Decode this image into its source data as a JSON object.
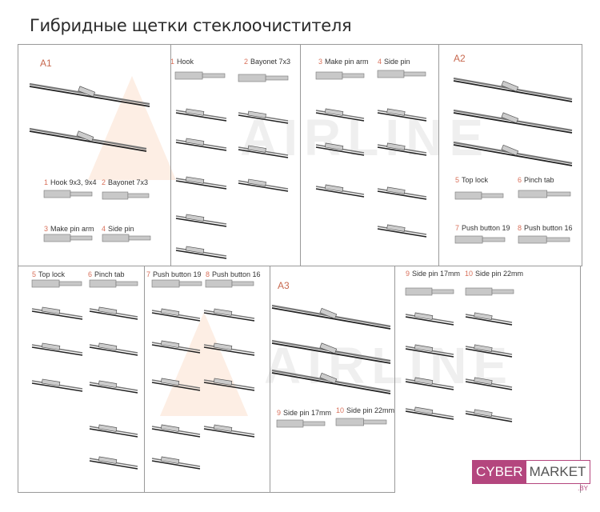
{
  "title": "Гибридные щетки стеклоочистителя",
  "watermark": "AIRLINE",
  "accent_color": "#d9705a",
  "top": {
    "a1": {
      "section": "A1",
      "labels": [
        {
          "n": "1",
          "text": "Hook 9x3, 9x4"
        },
        {
          "n": "2",
          "text": "Bayonet 7x3"
        },
        {
          "n": "3",
          "text": "Make pin arm"
        },
        {
          "n": "4",
          "text": "Side pin"
        }
      ]
    },
    "p2": {
      "labels": [
        {
          "n": "1",
          "text": "Hook"
        },
        {
          "n": "2",
          "text": "Bayonet 7x3"
        }
      ]
    },
    "p3": {
      "labels": [
        {
          "n": "3",
          "text": "Make pin arm"
        },
        {
          "n": "4",
          "text": "Side pin"
        }
      ]
    },
    "a2": {
      "section": "A2",
      "labels": [
        {
          "n": "5",
          "text": "Top lock"
        },
        {
          "n": "6",
          "text": "Pinch tab"
        },
        {
          "n": "7",
          "text": "Push button 19"
        },
        {
          "n": "8",
          "text": "Push button 16"
        }
      ]
    }
  },
  "bottom": {
    "p1": {
      "labels": [
        {
          "n": "5",
          "text": "Top lock"
        },
        {
          "n": "6",
          "text": "Pinch tab"
        }
      ]
    },
    "p2": {
      "labels": [
        {
          "n": "7",
          "text": "Push button 19"
        },
        {
          "n": "8",
          "text": "Push button 16"
        }
      ]
    },
    "a3": {
      "section": "A3",
      "labels": [
        {
          "n": "9",
          "text": "Side pin 17mm"
        },
        {
          "n": "10",
          "text": "Side pin 22mm"
        }
      ]
    },
    "p4": {
      "labels": [
        {
          "n": "9",
          "text": "Side pin 17mm"
        },
        {
          "n": "10",
          "text": "Side pin 22mm"
        }
      ]
    }
  },
  "logo": {
    "part1": "CYBER",
    "part2": "MARKET",
    "domain": ".BY"
  }
}
